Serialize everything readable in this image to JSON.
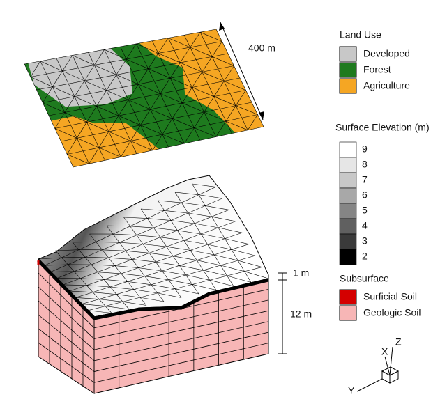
{
  "dimensions": {
    "width_label": "400 m",
    "top_layer_label": "1 m",
    "depth_label": "12 m"
  },
  "land_use_legend": {
    "title": "Land Use",
    "items": [
      {
        "label": "Developed",
        "color": "#c8c8c8"
      },
      {
        "label": "Forest",
        "color": "#1e7a1e"
      },
      {
        "label": "Agriculture",
        "color": "#f5a623"
      }
    ]
  },
  "elevation_legend": {
    "title": "Surface Elevation (m)",
    "labels": [
      "9",
      "8",
      "7",
      "6",
      "5",
      "4",
      "3",
      "2"
    ],
    "colors": [
      "#ffffff",
      "#e6e6e6",
      "#c8c8c8",
      "#a8a8a8",
      "#858585",
      "#606060",
      "#3a3a3a",
      "#000000"
    ]
  },
  "subsurface_legend": {
    "title": "Subsurface",
    "items": [
      {
        "label": "Surficial Soil",
        "color": "#d40000"
      },
      {
        "label": "Geologic Soil",
        "color": "#f7b6b6"
      }
    ]
  },
  "axes": {
    "x": "X",
    "y": "Y",
    "z": "Z"
  }
}
